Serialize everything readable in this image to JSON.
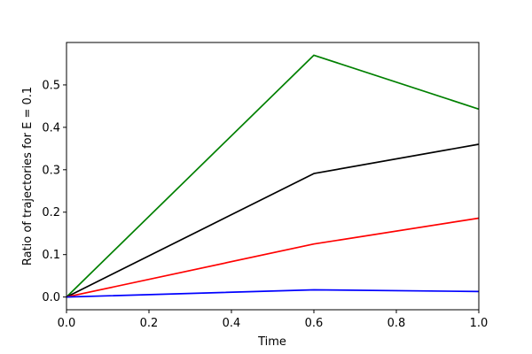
{
  "chart_data": {
    "type": "line",
    "title": "",
    "xlabel": "Time",
    "ylabel": "Ratio of trajectories for E = 0.1",
    "xlim": [
      0.0,
      1.0
    ],
    "ylim": [
      -0.03,
      0.6
    ],
    "x_ticks": [
      0.0,
      0.2,
      0.4,
      0.6,
      0.8,
      1.0
    ],
    "x_tick_labels": [
      "0.0",
      "0.2",
      "0.4",
      "0.6",
      "0.8",
      "1.0"
    ],
    "y_ticks": [
      0.0,
      0.1,
      0.2,
      0.3,
      0.4,
      0.5
    ],
    "y_tick_labels": [
      "0.0",
      "0.1",
      "0.2",
      "0.3",
      "0.4",
      "0.5"
    ],
    "grid": false,
    "legend": false,
    "x": [
      0.0,
      0.6,
      1.0
    ],
    "series": [
      {
        "color": "#008000",
        "values": [
          0.0,
          0.57,
          0.443
        ]
      },
      {
        "color": "#000000",
        "values": [
          0.0,
          0.291,
          0.36
        ]
      },
      {
        "color": "#ff0000",
        "values": [
          0.0,
          0.125,
          0.186
        ]
      },
      {
        "color": "#0000ff",
        "values": [
          0.0,
          0.017,
          0.013
        ]
      }
    ]
  }
}
